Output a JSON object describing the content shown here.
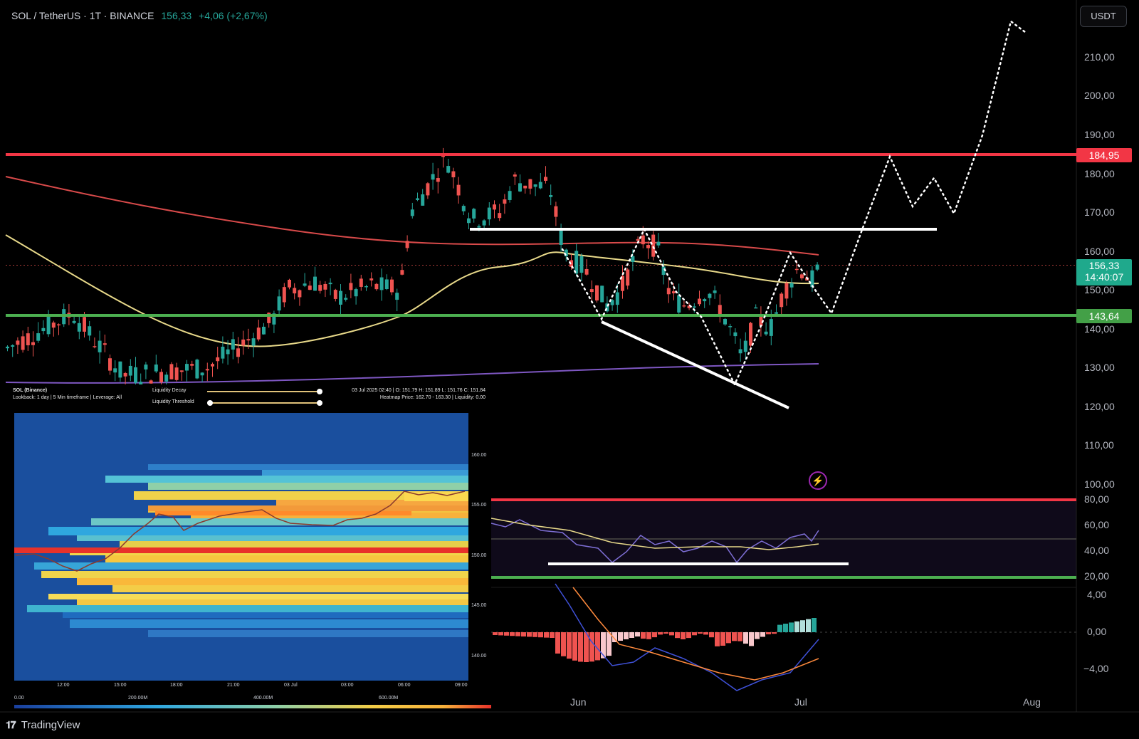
{
  "header": {
    "symbol_line": "SOL / TetherUS · 1T · BINANCE",
    "price": "156,33",
    "change": "+4,06 (+2,67%)"
  },
  "currency_button": "USDT",
  "price_axis": {
    "labels": [
      "210,00",
      "200,00",
      "190,00",
      "180,00",
      "170,00",
      "160,00",
      "150,00",
      "140,00",
      "130,00",
      "120,00",
      "110,00",
      "100,00"
    ],
    "resistance_tag": "184,95",
    "last_price_tag": "156,33",
    "countdown": "14:40:07",
    "support_tag": "143,64"
  },
  "rsi_axis": {
    "labels": [
      "80,00",
      "60,00",
      "40,00",
      "20,00"
    ]
  },
  "macd_axis": {
    "labels": [
      "4,00",
      "0,00",
      "−4,00"
    ]
  },
  "time_axis": {
    "labels": [
      "Jun",
      "Jul",
      "Aug"
    ]
  },
  "heatmap_overlay": {
    "title": "SOL (Binance)",
    "subtitle": "Lookback: 1 day | 5 Min timeframe | Leverage: All",
    "liquidity_decay": "Liquidity Decay",
    "liquidity_threshold": "Liquidity Threshold",
    "ohlc": "03 Jul 2025 02:40 | O: 151.79 H: 151.89 L: 151.76 C: 151.84",
    "heatmap_price": "Heatmap Price: 162.70 - 163.30 | Liquidity: 0.00",
    "y_ticks": [
      "160.00",
      "155.00",
      "150.00",
      "145.00",
      "140.00"
    ],
    "x_ticks": [
      "12:00",
      "15:00",
      "18:00",
      "21:00",
      "03 Jul",
      "03:00",
      "06:00",
      "09:00"
    ],
    "scale_ticks": [
      "0.00",
      "200.00M",
      "400.00M",
      "600.00M"
    ]
  },
  "footer": {
    "brand": "TradingView"
  },
  "colors": {
    "up": "#26a69a",
    "down": "#ef5350",
    "resistance": "#f23645",
    "support": "#4caf50",
    "ema_red": "#d84a4a",
    "ema_yellow": "#e8d98a",
    "ema_purple": "#7e57c2",
    "rsi": "#7e6fd6",
    "macd": "#3f51d8"
  },
  "icons": [
    "lightning-icon",
    "tradingview-logo-icon"
  ]
}
